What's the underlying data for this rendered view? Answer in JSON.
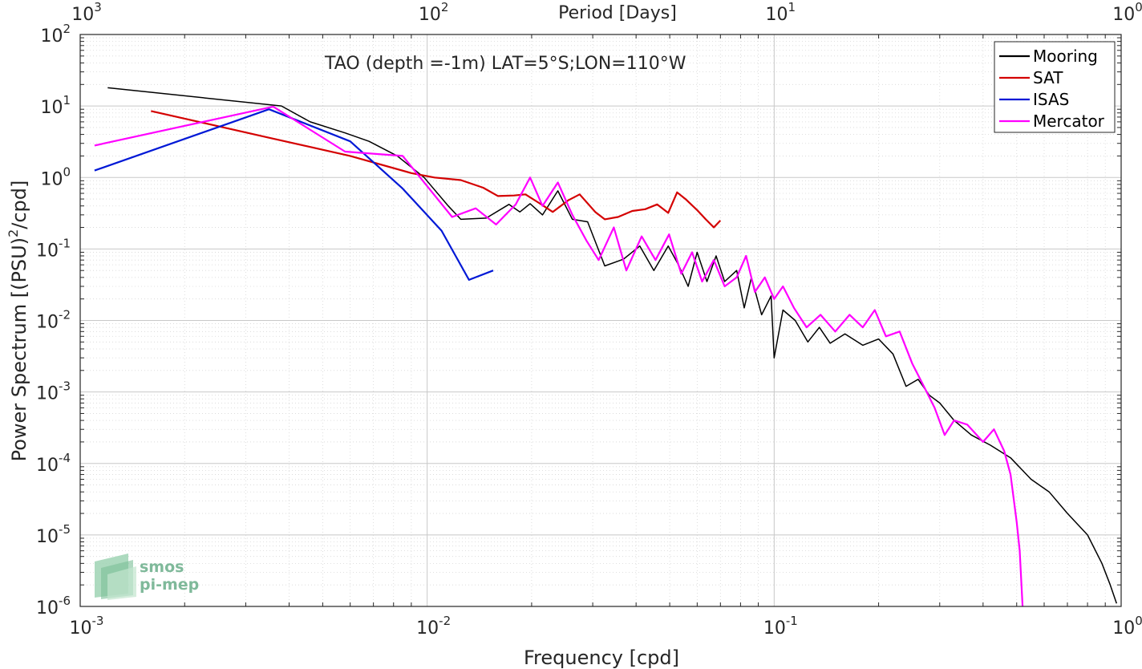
{
  "chart_data": {
    "type": "line",
    "annotation": "TAO (depth =-1m) LAT=5°S;LON=110°W",
    "xlabel": "Frequency [cpd]",
    "ylabel_main": "Power Spectrum [(PSU)",
    "ylabel_sup": "2",
    "ylabel_tail": "/cpd]",
    "top_xlabel": "Period [Days]",
    "xscale": "log",
    "yscale": "log",
    "xlim": [
      0.001,
      1
    ],
    "ylim": [
      1e-06,
      100
    ],
    "grid": true,
    "legend_position": "top-right",
    "x_ticks": [
      {
        "v": 0.001,
        "base": "10",
        "exp": "-3"
      },
      {
        "v": 0.01,
        "base": "10",
        "exp": "-2"
      },
      {
        "v": 0.1,
        "base": "10",
        "exp": "-1"
      },
      {
        "v": 1,
        "base": "10",
        "exp": "0"
      }
    ],
    "top_ticks": [
      {
        "v": 0.001,
        "base": "10",
        "exp": "3"
      },
      {
        "v": 0.01,
        "base": "10",
        "exp": "2"
      },
      {
        "v": 0.1,
        "base": "10",
        "exp": "1"
      },
      {
        "v": 1,
        "base": "10",
        "exp": "0"
      }
    ],
    "y_ticks": [
      {
        "v": 1e-06,
        "base": "10",
        "exp": "-6"
      },
      {
        "v": 1e-05,
        "base": "10",
        "exp": "-5"
      },
      {
        "v": 0.0001,
        "base": "10",
        "exp": "-4"
      },
      {
        "v": 0.001,
        "base": "10",
        "exp": "-3"
      },
      {
        "v": 0.01,
        "base": "10",
        "exp": "-2"
      },
      {
        "v": 0.1,
        "base": "10",
        "exp": "-1"
      },
      {
        "v": 1,
        "base": "10",
        "exp": "0"
      },
      {
        "v": 10,
        "base": "10",
        "exp": "1"
      },
      {
        "v": 100,
        "base": "10",
        "exp": "2"
      }
    ],
    "series": [
      {
        "name": "Mooring",
        "color": "#000000",
        "points": [
          [
            0.0012,
            18
          ],
          [
            0.0038,
            10
          ],
          [
            0.0046,
            6
          ],
          [
            0.0058,
            4.2
          ],
          [
            0.0068,
            3.2
          ],
          [
            0.0082,
            2.0
          ],
          [
            0.0098,
            1.0
          ],
          [
            0.0115,
            0.4
          ],
          [
            0.0125,
            0.26
          ],
          [
            0.0148,
            0.27
          ],
          [
            0.0172,
            0.42
          ],
          [
            0.0185,
            0.33
          ],
          [
            0.0198,
            0.43
          ],
          [
            0.0215,
            0.3
          ],
          [
            0.0238,
            0.65
          ],
          [
            0.0262,
            0.26
          ],
          [
            0.029,
            0.24
          ],
          [
            0.0325,
            0.058
          ],
          [
            0.0368,
            0.072
          ],
          [
            0.041,
            0.11
          ],
          [
            0.045,
            0.05
          ],
          [
            0.0495,
            0.11
          ],
          [
            0.053,
            0.06
          ],
          [
            0.0565,
            0.03
          ],
          [
            0.06,
            0.09
          ],
          [
            0.064,
            0.035
          ],
          [
            0.068,
            0.08
          ],
          [
            0.072,
            0.035
          ],
          [
            0.078,
            0.05
          ],
          [
            0.082,
            0.015
          ],
          [
            0.086,
            0.04
          ],
          [
            0.092,
            0.012
          ],
          [
            0.098,
            0.022
          ],
          [
            0.1,
            0.003
          ],
          [
            0.106,
            0.014
          ],
          [
            0.115,
            0.01
          ],
          [
            0.125,
            0.005
          ],
          [
            0.135,
            0.008
          ],
          [
            0.145,
            0.0048
          ],
          [
            0.16,
            0.0065
          ],
          [
            0.18,
            0.0045
          ],
          [
            0.2,
            0.0055
          ],
          [
            0.22,
            0.0034
          ],
          [
            0.24,
            0.0012
          ],
          [
            0.26,
            0.0015
          ],
          [
            0.28,
            0.0009
          ],
          [
            0.3,
            0.0007
          ],
          [
            0.33,
            0.0004
          ],
          [
            0.37,
            0.00025
          ],
          [
            0.42,
            0.00018
          ],
          [
            0.48,
            0.00012
          ],
          [
            0.55,
            6e-05
          ],
          [
            0.62,
            4e-05
          ],
          [
            0.7,
            2e-05
          ],
          [
            0.8,
            1e-05
          ],
          [
            0.88,
            4e-06
          ],
          [
            0.93,
            2e-06
          ],
          [
            0.97,
            1.1e-06
          ]
        ]
      },
      {
        "name": "SAT",
        "color": "#d40000",
        "points": [
          [
            0.0016,
            8.5
          ],
          [
            0.0035,
            3.6
          ],
          [
            0.006,
            2.0
          ],
          [
            0.009,
            1.15
          ],
          [
            0.0105,
            1.0
          ],
          [
            0.0125,
            0.92
          ],
          [
            0.0145,
            0.72
          ],
          [
            0.016,
            0.55
          ],
          [
            0.0178,
            0.56
          ],
          [
            0.0192,
            0.58
          ],
          [
            0.021,
            0.44
          ],
          [
            0.023,
            0.33
          ],
          [
            0.0255,
            0.48
          ],
          [
            0.0275,
            0.58
          ],
          [
            0.0305,
            0.33
          ],
          [
            0.0325,
            0.26
          ],
          [
            0.0355,
            0.28
          ],
          [
            0.039,
            0.34
          ],
          [
            0.0425,
            0.36
          ],
          [
            0.046,
            0.42
          ],
          [
            0.0495,
            0.32
          ],
          [
            0.0525,
            0.62
          ],
          [
            0.0555,
            0.5
          ],
          [
            0.06,
            0.35
          ],
          [
            0.0635,
            0.26
          ],
          [
            0.067,
            0.2
          ],
          [
            0.07,
            0.25
          ]
        ]
      },
      {
        "name": "ISAS",
        "color": "#0018d6",
        "points": [
          [
            0.0011,
            1.25
          ],
          [
            0.0035,
            9.0
          ],
          [
            0.006,
            3.2
          ],
          [
            0.0085,
            0.7
          ],
          [
            0.011,
            0.18
          ],
          [
            0.0132,
            0.037
          ],
          [
            0.0155,
            0.05
          ]
        ]
      },
      {
        "name": "Mercator",
        "color": "#ff00ff",
        "points": [
          [
            0.0011,
            2.8
          ],
          [
            0.0036,
            9.8
          ],
          [
            0.0058,
            2.3
          ],
          [
            0.0085,
            2.0
          ],
          [
            0.0118,
            0.28
          ],
          [
            0.0138,
            0.37
          ],
          [
            0.0158,
            0.22
          ],
          [
            0.018,
            0.42
          ],
          [
            0.0198,
            1.0
          ],
          [
            0.0215,
            0.4
          ],
          [
            0.0238,
            0.85
          ],
          [
            0.0262,
            0.3
          ],
          [
            0.0288,
            0.13
          ],
          [
            0.0312,
            0.07
          ],
          [
            0.0345,
            0.2
          ],
          [
            0.0375,
            0.05
          ],
          [
            0.0415,
            0.15
          ],
          [
            0.0455,
            0.07
          ],
          [
            0.0498,
            0.16
          ],
          [
            0.054,
            0.045
          ],
          [
            0.058,
            0.09
          ],
          [
            0.062,
            0.035
          ],
          [
            0.067,
            0.07
          ],
          [
            0.072,
            0.03
          ],
          [
            0.078,
            0.04
          ],
          [
            0.083,
            0.08
          ],
          [
            0.088,
            0.025
          ],
          [
            0.094,
            0.04
          ],
          [
            0.1,
            0.02
          ],
          [
            0.106,
            0.03
          ],
          [
            0.114,
            0.015
          ],
          [
            0.124,
            0.008
          ],
          [
            0.136,
            0.012
          ],
          [
            0.15,
            0.007
          ],
          [
            0.165,
            0.012
          ],
          [
            0.18,
            0.008
          ],
          [
            0.195,
            0.014
          ],
          [
            0.21,
            0.006
          ],
          [
            0.23,
            0.007
          ],
          [
            0.25,
            0.0025
          ],
          [
            0.27,
            0.0012
          ],
          [
            0.29,
            0.0006
          ],
          [
            0.31,
            0.00025
          ],
          [
            0.33,
            0.0004
          ],
          [
            0.36,
            0.00035
          ],
          [
            0.4,
            0.0002
          ],
          [
            0.43,
            0.0003
          ],
          [
            0.46,
            0.00015
          ],
          [
            0.48,
            7e-05
          ],
          [
            0.5,
            1.5e-05
          ],
          [
            0.51,
            6e-06
          ],
          [
            0.52,
            1e-06
          ]
        ]
      }
    ]
  },
  "logo": {
    "line1": "smos",
    "line2": "pi-mep"
  }
}
